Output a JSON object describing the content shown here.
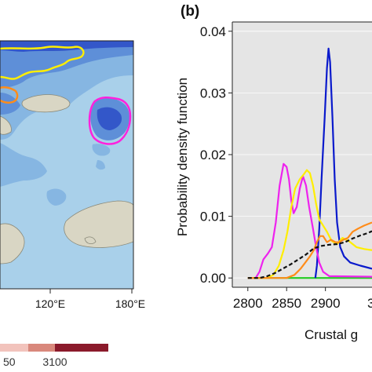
{
  "map_panel": {
    "lon_ticks": [
      "120°E",
      "180°E"
    ],
    "colorbar_ticks": [
      "50",
      "3100"
    ],
    "colors": {
      "ocean_light": "#a9d0ea",
      "blue_mid": "#86b6e2",
      "blue_deep": "#5e8fd8",
      "blue_dark": "#3357c9",
      "land": "#d9d6c4",
      "colorbar_a": "#f2c3bc",
      "colorbar_b": "#d9887c",
      "colorbar_c": "#8b1a2b"
    },
    "outline_colors": {
      "yellow": "#ffee00",
      "orange": "#ff8c1a",
      "magenta": "#ff22dd"
    }
  },
  "chart_data": {
    "type": "line",
    "panel_label": "(b)",
    "xlabel": "Crustal g",
    "ylabel": "Probability density function",
    "xlim": [
      2780,
      2960
    ],
    "ylim": [
      -0.0015,
      0.0415
    ],
    "x_ticks": [
      2800,
      2850,
      2900
    ],
    "x_tick_labels": [
      "2800",
      "2850",
      "2900"
    ],
    "x_tick_partial": "3",
    "y_ticks": [
      0.0,
      0.01,
      0.02,
      0.03,
      0.04
    ],
    "y_tick_labels": [
      "0.00",
      "0.01",
      "0.02",
      "0.03",
      "0.04"
    ],
    "plot_background": "#e5e5e5",
    "series": [
      {
        "color": "#22cc22",
        "dash": false,
        "points": [
          [
            2800,
            0
          ],
          [
            2960,
            0
          ]
        ]
      },
      {
        "color": "#0a1acc",
        "dash": false,
        "points": [
          [
            2887,
            0
          ],
          [
            2889,
            0.002
          ],
          [
            2892,
            0.008
          ],
          [
            2895,
            0.016
          ],
          [
            2899,
            0.026
          ],
          [
            2902,
            0.034
          ],
          [
            2904,
            0.0372
          ],
          [
            2906,
            0.035
          ],
          [
            2909,
            0.026
          ],
          [
            2912,
            0.016
          ],
          [
            2915,
            0.009
          ],
          [
            2919,
            0.005
          ],
          [
            2924,
            0.0035
          ],
          [
            2932,
            0.0025
          ],
          [
            2945,
            0.002
          ],
          [
            2960,
            0.0015
          ]
        ]
      },
      {
        "color": "#ee22ee",
        "dash": false,
        "points": [
          [
            2800,
            0
          ],
          [
            2810,
            0
          ],
          [
            2815,
            0.001
          ],
          [
            2820,
            0.003
          ],
          [
            2826,
            0.004
          ],
          [
            2831,
            0.005
          ],
          [
            2836,
            0.009
          ],
          [
            2841,
            0.015
          ],
          [
            2846,
            0.0185
          ],
          [
            2850,
            0.018
          ],
          [
            2853,
            0.016
          ],
          [
            2856,
            0.0125
          ],
          [
            2859,
            0.0105
          ],
          [
            2863,
            0.0115
          ],
          [
            2867,
            0.0145
          ],
          [
            2871,
            0.0165
          ],
          [
            2875,
            0.015
          ],
          [
            2879,
            0.0115
          ],
          [
            2884,
            0.008
          ],
          [
            2888,
            0.005
          ],
          [
            2892,
            0.0025
          ],
          [
            2897,
            0.001
          ],
          [
            2905,
            0.0003
          ],
          [
            2960,
            0.0002
          ]
        ]
      },
      {
        "color": "#ffee00",
        "dash": false,
        "points": [
          [
            2800,
            0
          ],
          [
            2825,
            0
          ],
          [
            2833,
            0.0005
          ],
          [
            2840,
            0.002
          ],
          [
            2846,
            0.0045
          ],
          [
            2851,
            0.0075
          ],
          [
            2856,
            0.0115
          ],
          [
            2861,
            0.0145
          ],
          [
            2867,
            0.016
          ],
          [
            2872,
            0.0168
          ],
          [
            2876,
            0.0175
          ],
          [
            2880,
            0.017
          ],
          [
            2884,
            0.015
          ],
          [
            2888,
            0.012
          ],
          [
            2892,
            0.0095
          ],
          [
            2897,
            0.0085
          ],
          [
            2902,
            0.0075
          ],
          [
            2908,
            0.006
          ],
          [
            2915,
            0.0055
          ],
          [
            2922,
            0.0065
          ],
          [
            2930,
            0.006
          ],
          [
            2940,
            0.005
          ],
          [
            2950,
            0.0047
          ],
          [
            2960,
            0.0045
          ]
        ]
      },
      {
        "color": "#ff8c1a",
        "dash": false,
        "points": [
          [
            2800,
            0
          ],
          [
            2850,
            0
          ],
          [
            2860,
            0.0005
          ],
          [
            2868,
            0.0015
          ],
          [
            2874,
            0.0025
          ],
          [
            2880,
            0.0035
          ],
          [
            2885,
            0.0045
          ],
          [
            2889,
            0.0058
          ],
          [
            2893,
            0.0068
          ],
          [
            2897,
            0.0068
          ],
          [
            2902,
            0.0058
          ],
          [
            2907,
            0.0062
          ],
          [
            2913,
            0.0058
          ],
          [
            2918,
            0.0058
          ],
          [
            2923,
            0.0062
          ],
          [
            2929,
            0.0065
          ],
          [
            2935,
            0.0075
          ],
          [
            2942,
            0.008
          ],
          [
            2950,
            0.0085
          ],
          [
            2960,
            0.009
          ]
        ]
      },
      {
        "color": "#111111",
        "dash": true,
        "points": [
          [
            2800,
            0
          ],
          [
            2815,
            0
          ],
          [
            2825,
            0.0003
          ],
          [
            2835,
            0.0008
          ],
          [
            2845,
            0.0015
          ],
          [
            2855,
            0.0022
          ],
          [
            2865,
            0.003
          ],
          [
            2875,
            0.0038
          ],
          [
            2885,
            0.0048
          ],
          [
            2895,
            0.0052
          ],
          [
            2905,
            0.0054
          ],
          [
            2915,
            0.0055
          ],
          [
            2925,
            0.0058
          ],
          [
            2935,
            0.0064
          ],
          [
            2945,
            0.0069
          ],
          [
            2955,
            0.0073
          ],
          [
            2960,
            0.0076
          ]
        ]
      }
    ]
  }
}
